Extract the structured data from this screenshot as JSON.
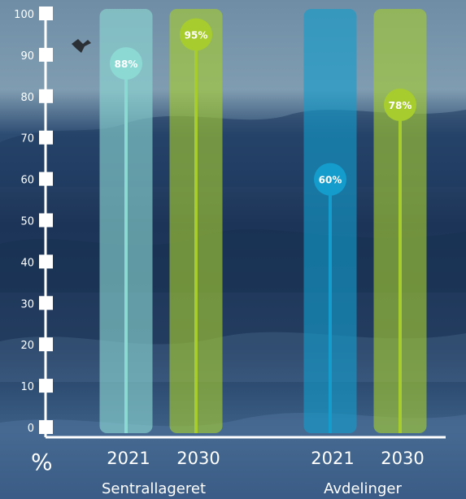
{
  "chart_data": {
    "type": "bar",
    "ylabel": "%",
    "ylim": [
      0,
      100
    ],
    "yticks": [
      0,
      10,
      20,
      30,
      40,
      50,
      60,
      70,
      80,
      90,
      100
    ],
    "groups": [
      {
        "name": "Sentrallageret",
        "bars": [
          {
            "year": "2021",
            "value": 88,
            "label": "88%",
            "color": "#8cd9d4"
          },
          {
            "year": "2030",
            "value": 95,
            "label": "95%",
            "color": "#a6cc2e"
          }
        ]
      },
      {
        "name": "Avdelinger",
        "bars": [
          {
            "year": "2021",
            "value": 60,
            "label": "60%",
            "color": "#139ccc"
          },
          {
            "year": "2030",
            "value": 78,
            "label": "78%",
            "color": "#a6cc2e"
          }
        ]
      }
    ]
  }
}
